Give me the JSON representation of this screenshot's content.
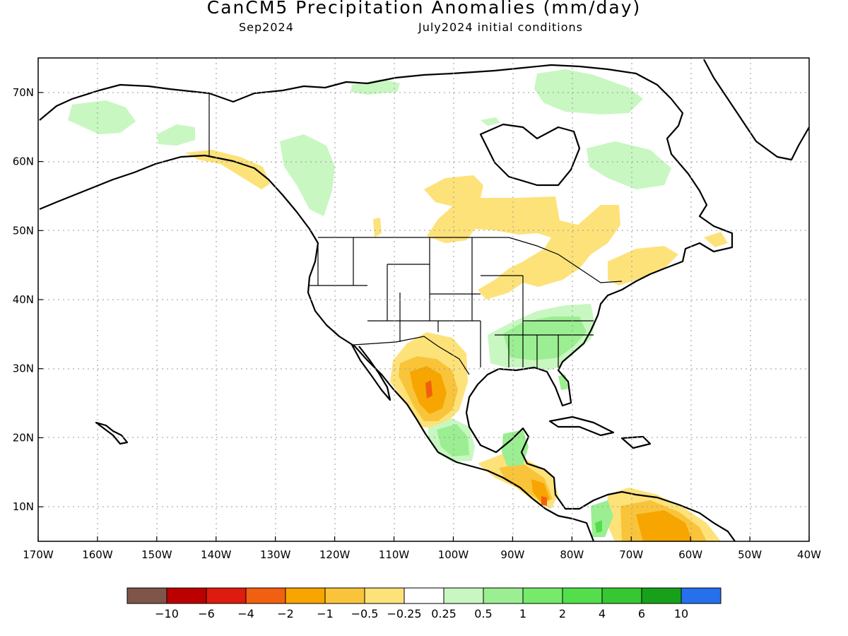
{
  "header": {
    "title": "CanCM5 Precipitation Anomalies (mm/day)",
    "valid_month": "Sep2024",
    "init": "July2024 initial conditions"
  },
  "map": {
    "lon_range": [
      -170,
      -40
    ],
    "lat_range": [
      5,
      75
    ],
    "lon_ticks": [
      -170,
      -160,
      -150,
      -140,
      -130,
      -120,
      -110,
      -100,
      -90,
      -80,
      -70,
      -60,
      -50,
      -40
    ],
    "lon_labels": [
      "170W",
      "160W",
      "150W",
      "140W",
      "130W",
      "120W",
      "110W",
      "100W",
      "90W",
      "80W",
      "70W",
      "60W",
      "50W",
      "40W"
    ],
    "lat_ticks": [
      10,
      20,
      30,
      40,
      50,
      60,
      70
    ],
    "lat_labels": [
      "10N",
      "20N",
      "30N",
      "40N",
      "50N",
      "60N",
      "70N"
    ],
    "grid": "dotted",
    "regions": [
      {
        "name": "southwest-mexico-dry-core",
        "lon": -104.2,
        "lat": 26.5,
        "level": "-4"
      },
      {
        "name": "central-america-dry",
        "lon": -84.5,
        "lat": 11.5,
        "level": "-2"
      },
      {
        "name": "northern-south-america-dry",
        "lon": -66,
        "lat": 8,
        "level": "-2"
      },
      {
        "name": "southeast-us-wet",
        "lon": -85,
        "lat": 33,
        "level": "0.5"
      },
      {
        "name": "southern-mexico-wet",
        "lon": -99,
        "lat": 19,
        "level": "1"
      },
      {
        "name": "alaska-wet",
        "lon": -160,
        "lat": 67,
        "level": "0.25"
      },
      {
        "name": "western-canada-wet",
        "lon": -122,
        "lat": 60,
        "level": "0.25"
      },
      {
        "name": "quebec-wet",
        "lon": -70,
        "lat": 59,
        "level": "0.25"
      },
      {
        "name": "baffin-wet",
        "lon": -73,
        "lat": 70,
        "level": "0.25"
      },
      {
        "name": "ontario-dry",
        "lon": -89,
        "lat": 51,
        "level": "-0.25"
      },
      {
        "name": "great-lakes-dry",
        "lon": -80,
        "lat": 46,
        "level": "-0.25"
      }
    ]
  },
  "colorbar": {
    "labels": [
      "-10",
      "-6",
      "-4",
      "-2",
      "-1",
      "-0.5",
      "-0.25",
      "0.25",
      "0.5",
      "1",
      "2",
      "4",
      "6",
      "10"
    ],
    "colors": [
      "#7e5548",
      "#bb0000",
      "#dd1b0e",
      "#f06010",
      "#f7a500",
      "#f9c43a",
      "#fde27a",
      "#ffffff",
      "#c8f7c1",
      "#9bee91",
      "#75ea6b",
      "#52df4b",
      "#36c733",
      "#17a11b",
      "#2670ee"
    ]
  }
}
